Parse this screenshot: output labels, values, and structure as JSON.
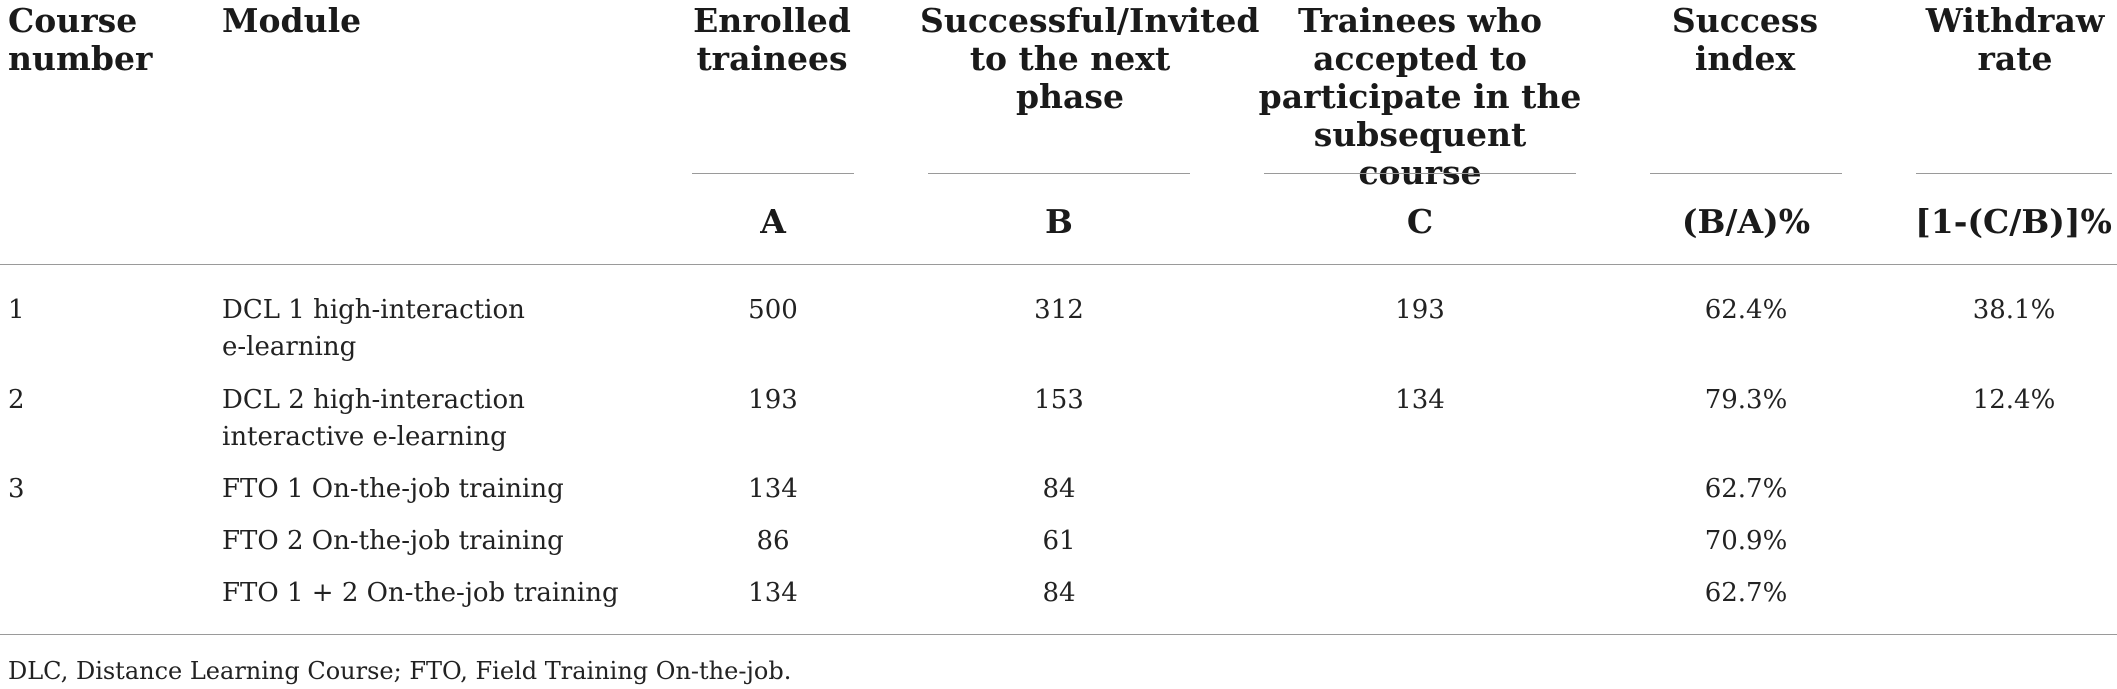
{
  "headers": {
    "course_number": [
      "Course",
      "number"
    ],
    "module": "Module",
    "enrolled": [
      "Enrolled",
      "trainees"
    ],
    "successful": [
      "Successful/Invited",
      "to the next phase"
    ],
    "accepted": [
      "Trainees who",
      "accepted to",
      "participate in the",
      "subsequent course"
    ],
    "success_index": [
      "Success",
      "index"
    ],
    "withdraw_rate": [
      "Withdraw",
      "rate"
    ]
  },
  "subheaders": {
    "enrolled": "A",
    "successful": "B",
    "accepted": "C",
    "success_index": "(B/A)%",
    "withdraw_rate": "[1-(C/B)]%"
  },
  "rows": [
    {
      "course": "1",
      "module": [
        "DCL 1 high-interaction",
        "e-learning"
      ],
      "a": "500",
      "b": "312",
      "c": "193",
      "success": "62.4%",
      "withdraw": "38.1%"
    },
    {
      "course": "2",
      "module": [
        "DCL 2 high-interaction",
        "interactive e-learning"
      ],
      "a": "193",
      "b": "153",
      "c": "134",
      "success": "79.3%",
      "withdraw": "12.4%"
    },
    {
      "course": "3",
      "module": [
        "FTO 1 On-the-job training"
      ],
      "a": "134",
      "b": "84",
      "c": "",
      "success": "62.7%",
      "withdraw": ""
    },
    {
      "course": "",
      "module": [
        "FTO 2 On-the-job training"
      ],
      "a": "86",
      "b": "61",
      "c": "",
      "success": "70.9%",
      "withdraw": ""
    },
    {
      "course": "",
      "module": [
        "FTO 1 + 2 On-the-job training"
      ],
      "a": "134",
      "b": "84",
      "c": "",
      "success": "62.7%",
      "withdraw": ""
    }
  ],
  "footnote": "DLC, Distance Learning Course; FTO, Field Training On-the-job."
}
